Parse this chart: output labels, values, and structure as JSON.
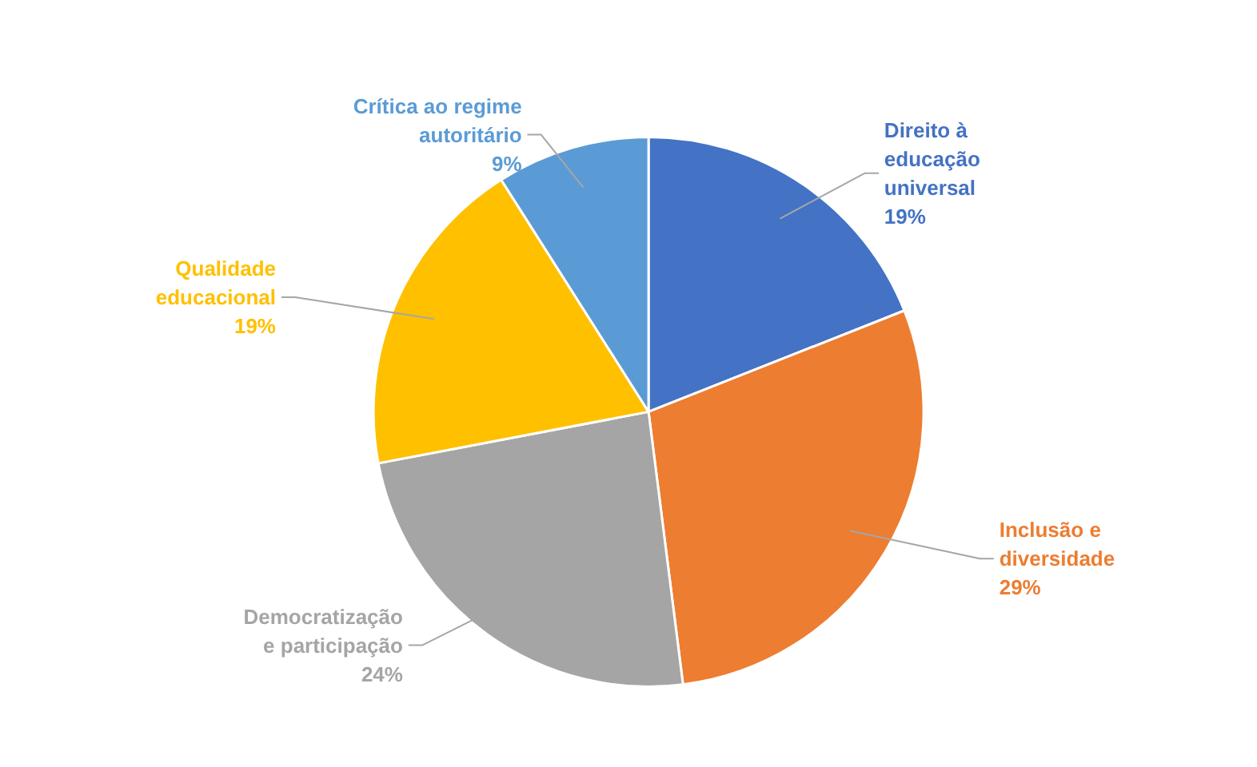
{
  "chart_data": {
    "type": "pie",
    "categories": [
      "Direito à\neducação\nuniversal",
      "Inclusão e\ndiversidade",
      "Democratização\ne participação",
      "Qualidade\neducacional",
      "Crítica ao regime\nautoritário"
    ],
    "values": [
      19,
      29,
      24,
      19,
      9
    ],
    "colors": [
      "#4472c4",
      "#ed7d31",
      "#a5a5a5",
      "#ffc000",
      "#5b9bd5"
    ],
    "value_labels": [
      "19%",
      "29%",
      "24%",
      "19%",
      "9%"
    ]
  }
}
